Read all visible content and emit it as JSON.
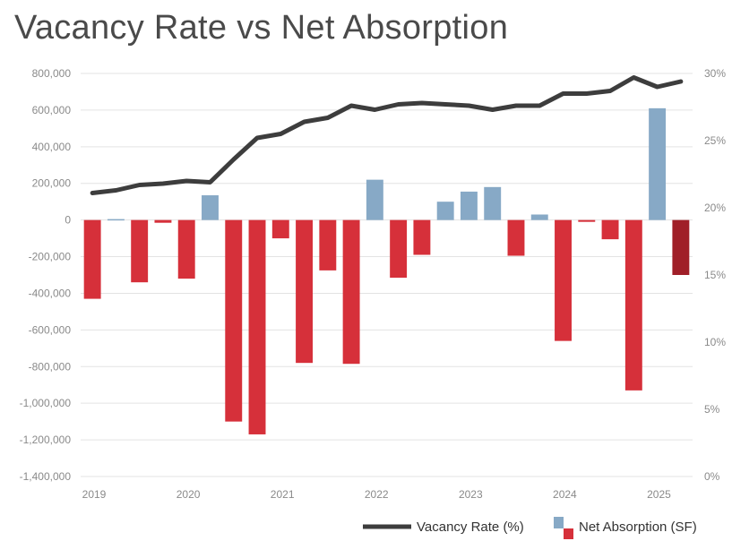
{
  "title": "Vacancy Rate vs Net Absorption",
  "colors": {
    "positive_bar": "#87a9c6",
    "negative_bar": "#d6303a",
    "last_negative_bar": "#a01f28",
    "line": "#3d3d3d",
    "grid": "#e3e3e3"
  },
  "chart_data": {
    "type": "bar+line",
    "title": "Vacancy Rate vs Net Absorption",
    "grid": true,
    "legend_position": "bottom-right",
    "y_left": {
      "range": [
        -1400000,
        800000
      ],
      "ticks": [
        800000,
        600000,
        400000,
        200000,
        0,
        -200000,
        -400000,
        -600000,
        -800000,
        -1000000,
        -1200000,
        -1400000
      ],
      "tick_labels": [
        "800,000",
        "600,000",
        "400,000",
        "200,000",
        "0",
        "-200,000",
        "-400,000",
        "-600,000",
        "-800,000",
        "-1,000,000",
        "-1,200,000",
        "-1,400,000"
      ]
    },
    "y_right": {
      "range": [
        0,
        30
      ],
      "ticks": [
        30,
        25,
        20,
        15,
        10,
        5,
        0
      ],
      "tick_labels": [
        "30%",
        "25%",
        "20%",
        "15%",
        "10%",
        "5%",
        "0%"
      ]
    },
    "x_year_labels": [
      "2019",
      "2020",
      "2021",
      "2022",
      "2023",
      "2024",
      "2025"
    ],
    "periods": [
      "2019 Q1",
      "2019 Q2",
      "2019 Q3",
      "2019 Q4",
      "2020 Q1",
      "2020 Q2",
      "2020 Q3",
      "2020 Q4",
      "2021 Q1",
      "2021 Q2",
      "2021 Q3",
      "2021 Q4",
      "2022 Q1",
      "2022 Q2",
      "2022 Q3",
      "2022 Q4",
      "2023 Q1",
      "2023 Q2",
      "2023 Q3",
      "2023 Q4",
      "2024 Q1",
      "2024 Q2",
      "2024 Q3",
      "2024 Q4",
      "2025 Q1",
      "2025 Q2"
    ],
    "series": [
      {
        "name": "Net Absorption (SF)",
        "type": "bar",
        "axis": "left",
        "values": [
          -430000,
          5000,
          -340000,
          -15000,
          -320000,
          135000,
          -1100000,
          -1170000,
          -100000,
          -780000,
          -275000,
          -785000,
          220000,
          -315000,
          -190000,
          100000,
          155000,
          180000,
          -195000,
          30000,
          -660000,
          -10000,
          -105000,
          -930000,
          610000,
          -300000
        ]
      },
      {
        "name": "Vacancy Rate (%)",
        "type": "line",
        "axis": "right",
        "values": [
          21.1,
          21.3,
          21.7,
          21.8,
          22.0,
          21.9,
          23.6,
          25.2,
          25.5,
          26.4,
          26.7,
          27.6,
          27.3,
          27.7,
          27.8,
          27.7,
          27.6,
          27.3,
          27.6,
          27.6,
          28.5,
          28.5,
          28.7,
          29.7,
          29.0,
          29.4
        ]
      }
    ]
  },
  "legend": {
    "line_label": "Vacancy Rate (%)",
    "bar_label": "Net Absorption (SF)"
  }
}
